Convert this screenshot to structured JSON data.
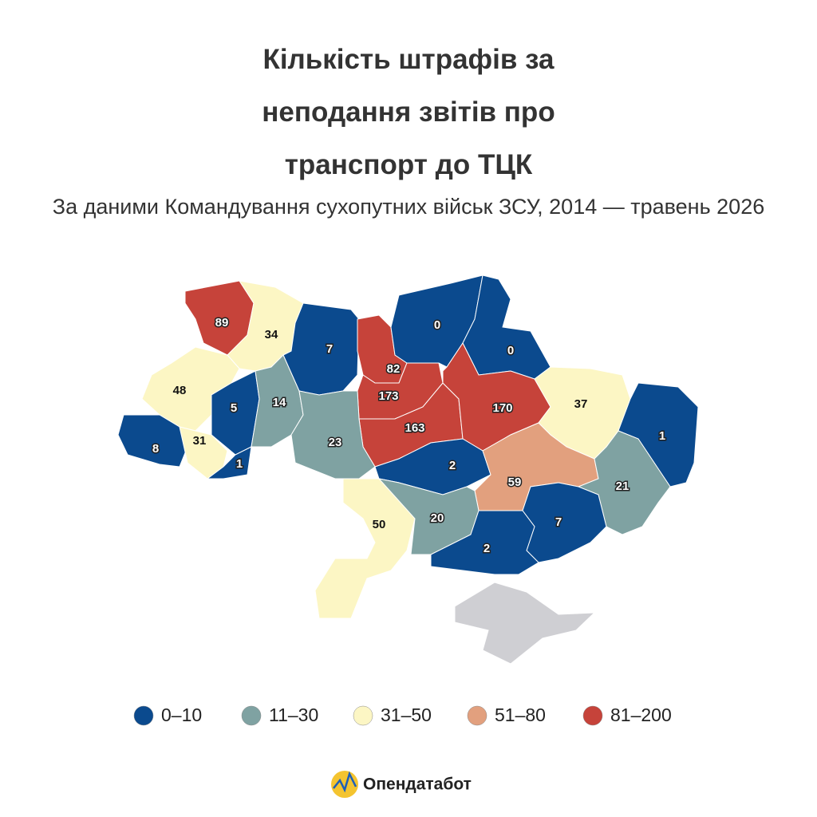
{
  "title": "Кількість штрафів за неподання звітів про транспорт до ТЦК",
  "subtitle": "За даними Командування сухопутних військ ЗСУ, 2014 — травень 2026",
  "legend": [
    {
      "label": "0–10",
      "range": [
        0,
        10
      ],
      "color": "#0b4a8e"
    },
    {
      "label": "11–30",
      "range": [
        11,
        30
      ],
      "color": "#7fa2a2"
    },
    {
      "label": "31–50",
      "range": [
        31,
        50
      ],
      "color": "#fcf6c4"
    },
    {
      "label": "51–80",
      "range": [
        51,
        80
      ],
      "color": "#e2a07e"
    },
    {
      "label": "81–200",
      "range": [
        81,
        200
      ],
      "color": "#c6433a"
    }
  ],
  "regions": [
    {
      "value": 89
    },
    {
      "value": 34
    },
    {
      "value": 7
    },
    {
      "value": 82
    },
    {
      "value": 0
    },
    {
      "value": 0
    },
    {
      "value": 48
    },
    {
      "value": 5
    },
    {
      "value": 14
    },
    {
      "value": 173
    },
    {
      "value": 163
    },
    {
      "value": 170
    },
    {
      "value": 37
    },
    {
      "value": 1
    },
    {
      "value": 8
    },
    {
      "value": 31
    },
    {
      "value": 1
    },
    {
      "value": 23
    },
    {
      "value": 2
    },
    {
      "value": 59
    },
    {
      "value": 21
    },
    {
      "value": 50
    },
    {
      "value": 20
    },
    {
      "value": 7
    },
    {
      "value": 2
    }
  ],
  "brand": "Опендатабот"
}
